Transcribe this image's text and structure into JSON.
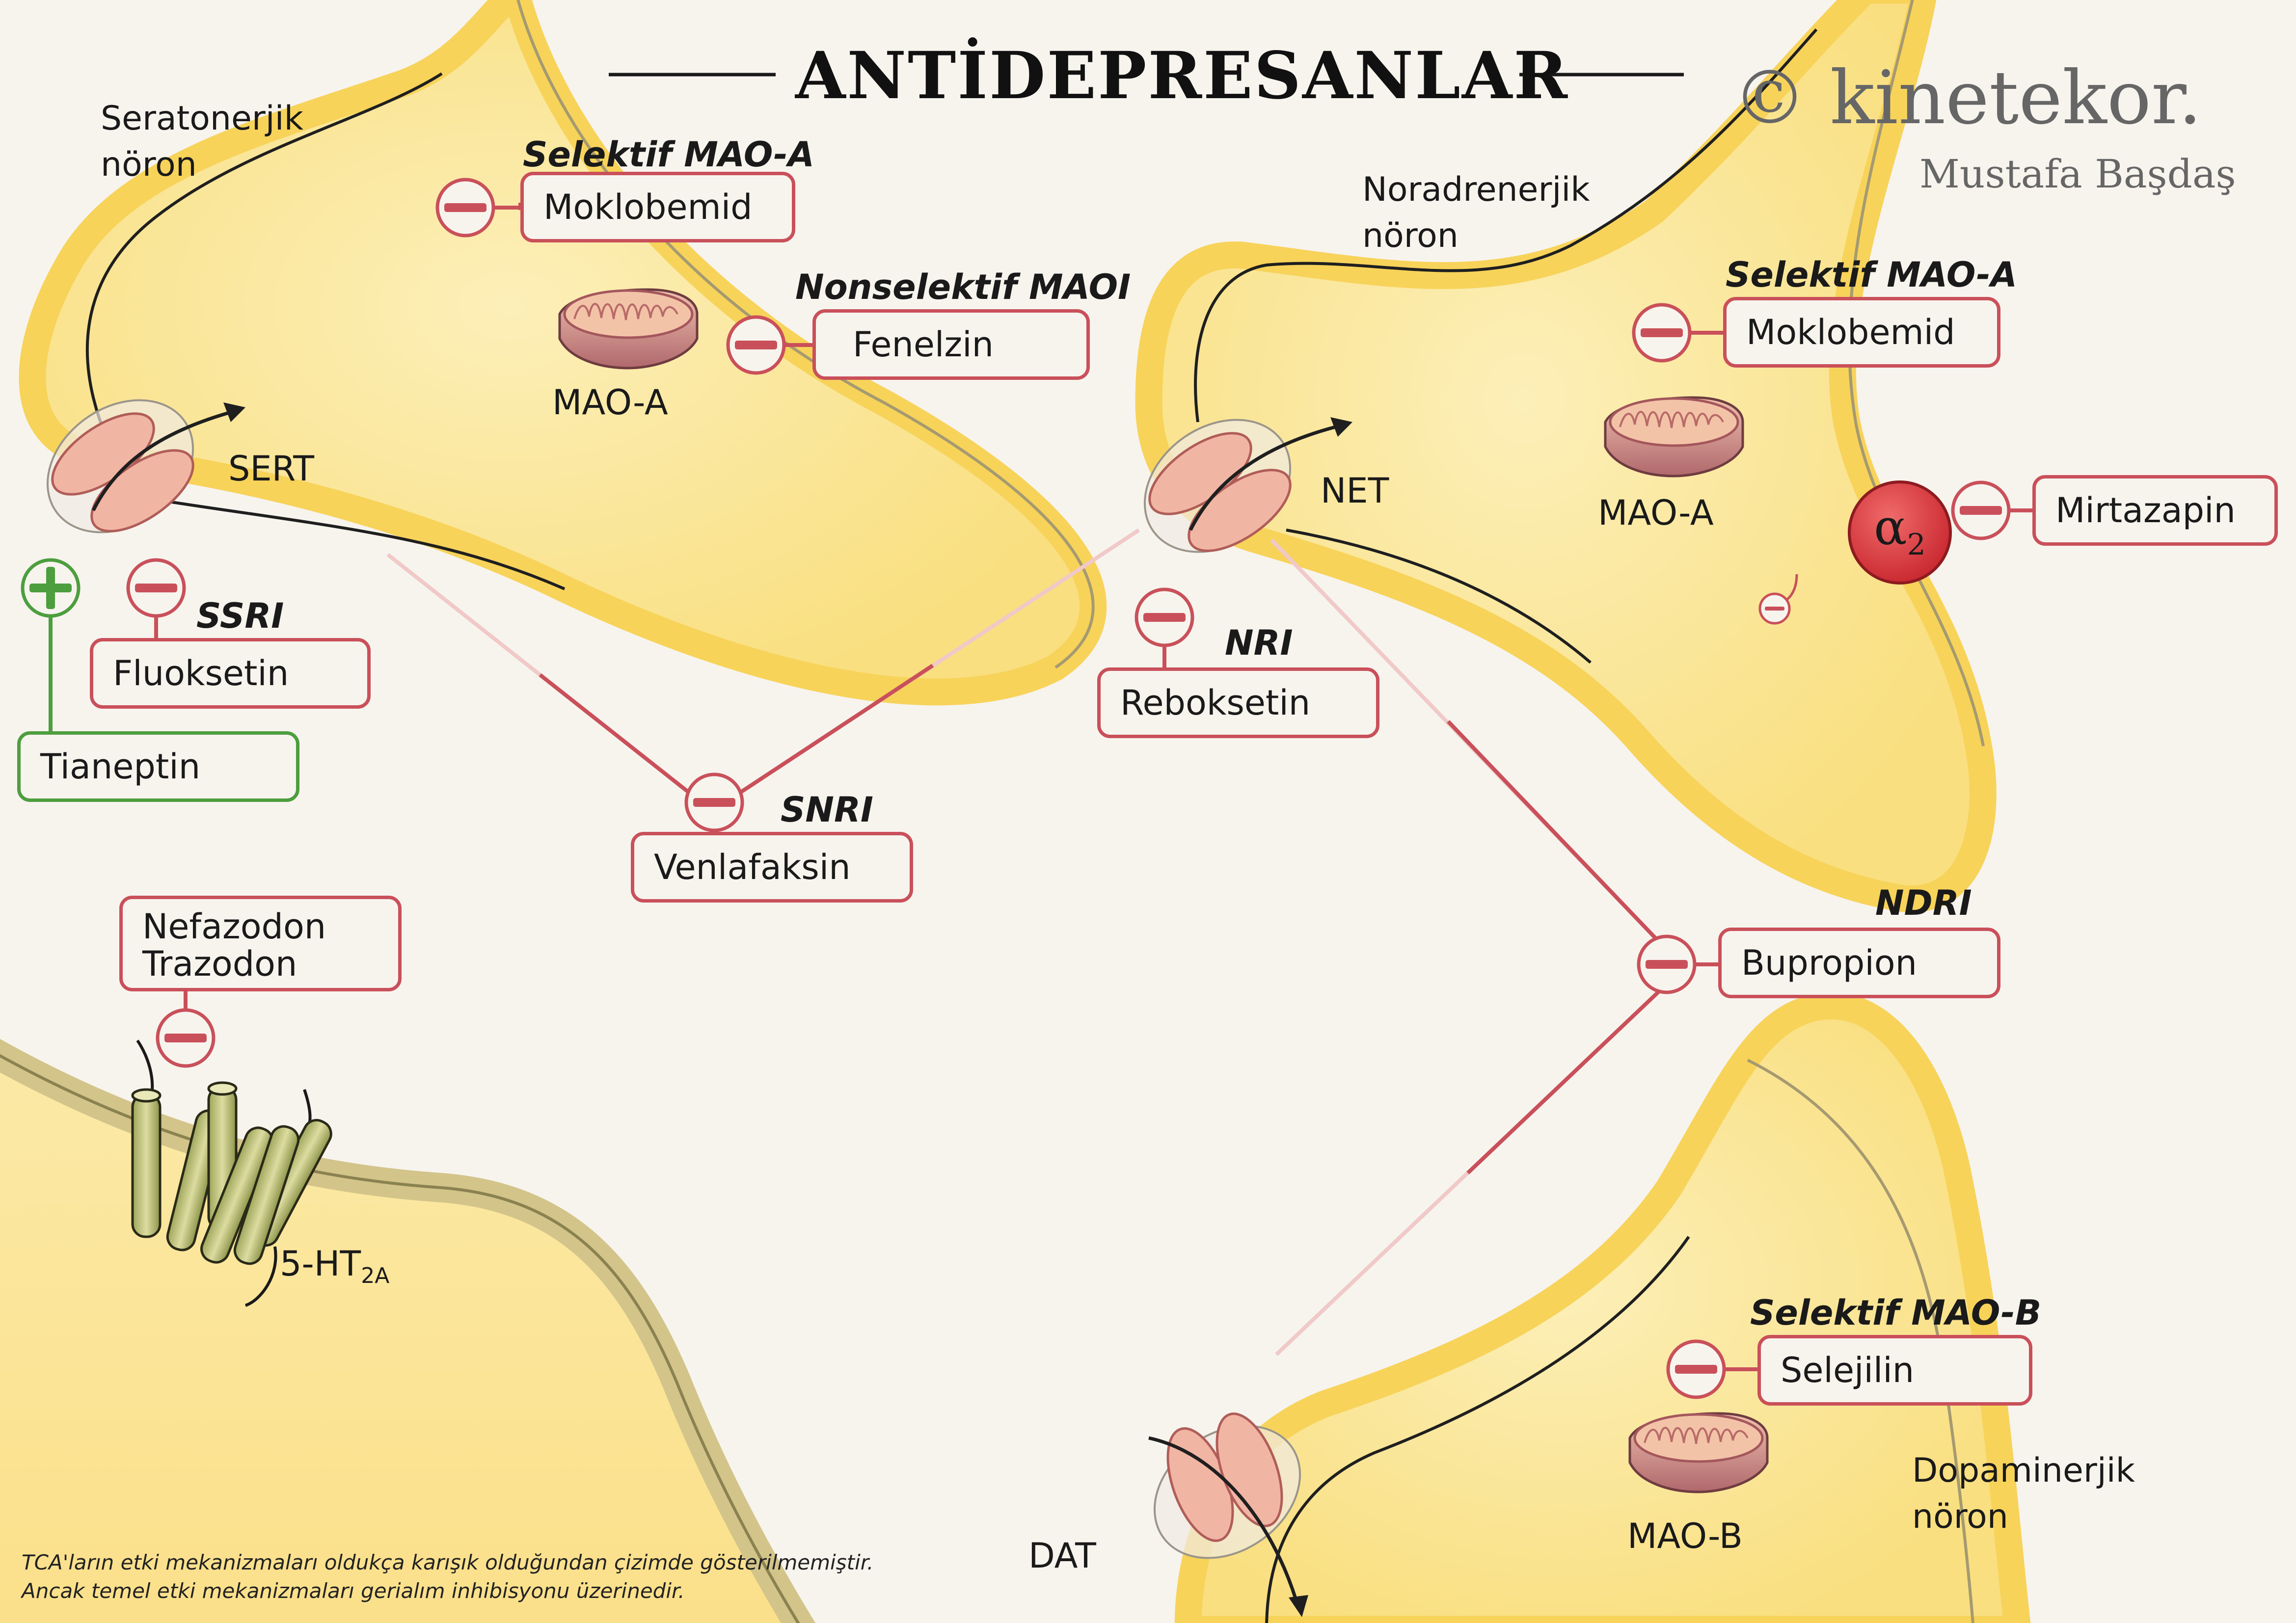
{
  "title": "ANTİDEPRESANLAR",
  "brand": {
    "name": "© kinetekor.",
    "author": "Mustafa Başdaş"
  },
  "neurons": {
    "serotonergic": "Seratonerjik\nnöron",
    "noradrenergic": "Noradrenerjik\nnöron",
    "dopaminergic": "Dopaminerjik\nnöron"
  },
  "transporters": {
    "sert": "SERT",
    "net": "NET",
    "dat": "DAT"
  },
  "enzymes": {
    "mao_a_1": "MAO-A",
    "mao_a_2": "MAO-A",
    "mao_b": "MAO-B"
  },
  "receptors": {
    "ht2a": "5-HT",
    "ht2a_sub": "2A",
    "alpha2": "α",
    "alpha2_sub": "2"
  },
  "classes": {
    "selective_mao_a_1": "Selektif MAO-A",
    "nonselective_maoi": "Nonselektif MAOI",
    "selective_mao_a_2": "Selektif MAO-A",
    "ssri": "SSRI",
    "snri": "SNRI",
    "nri": "NRI",
    "ndri": "NDRI",
    "selective_mao_b": "Selektif MAO-B"
  },
  "drugs": {
    "moklobemid_1": "Moklobemid",
    "fenelzin": "Fenelzin",
    "fluoksetin": "Fluoksetin",
    "tianeptin": "Tianeptin",
    "venlafaksin": "Venlafaksin",
    "nefazodon_trazodon": "Nefazodon\nTrazodon",
    "reboksetin": "Reboksetin",
    "moklobemid_2": "Moklobemid",
    "mirtazapin": "Mirtazapin",
    "bupropion": "Bupropion",
    "selejilin": "Selejilin"
  },
  "footnote": {
    "line1": "TCA'ların etki mekanizmaları oldukça karışık olduğundan çizimde gösterilmemiştir.",
    "line2": "Ancak temel etki mekanizmaları gerialım inhibisyonu üzerinedir."
  },
  "colors": {
    "background": "#f7f4ee",
    "neuron_fill": "#fbecae",
    "neuron_rim": "#fadb72",
    "inhibit": "#c9505a",
    "activate": "#4d9e3e",
    "transporter": "#f1b5a4",
    "mitochondria": "#b87274",
    "receptor": "#c1c37a",
    "alpha2": "#d9333a"
  }
}
